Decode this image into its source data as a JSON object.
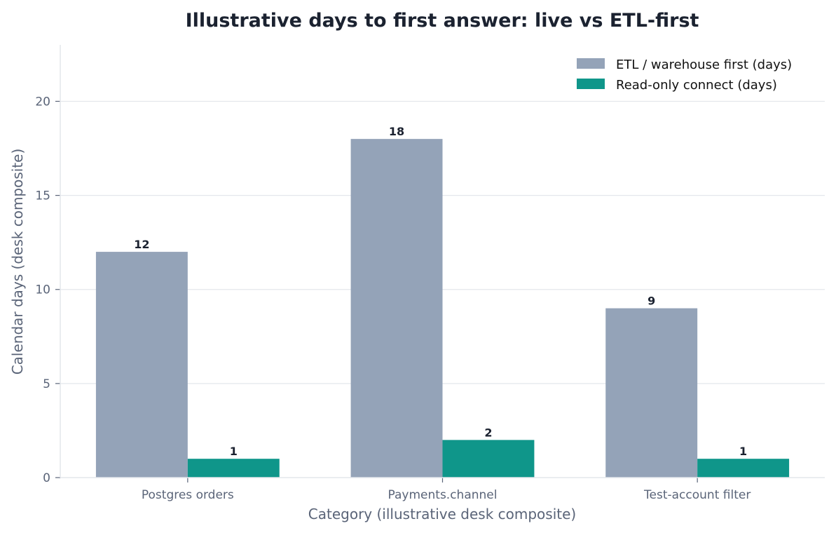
{
  "chart_data": {
    "type": "bar",
    "title": "Illustrative days to first answer: live vs ETL-first",
    "xlabel": "Category (illustrative desk composite)",
    "ylabel": "Calendar days (desk composite)",
    "categories": [
      "Postgres orders",
      "Payments.channel",
      "Test-account filter"
    ],
    "series": [
      {
        "name": "ETL / warehouse first (days)",
        "values": [
          12,
          18,
          9
        ],
        "color": "#94a3b8"
      },
      {
        "name": "Read-only connect (days)",
        "values": [
          1,
          2,
          1
        ],
        "color": "#0f968a"
      }
    ],
    "ylim": [
      0,
      23
    ],
    "yticks": [
      0,
      5,
      10,
      15,
      20
    ],
    "grid": "horizontal",
    "legend": "top-right"
  }
}
